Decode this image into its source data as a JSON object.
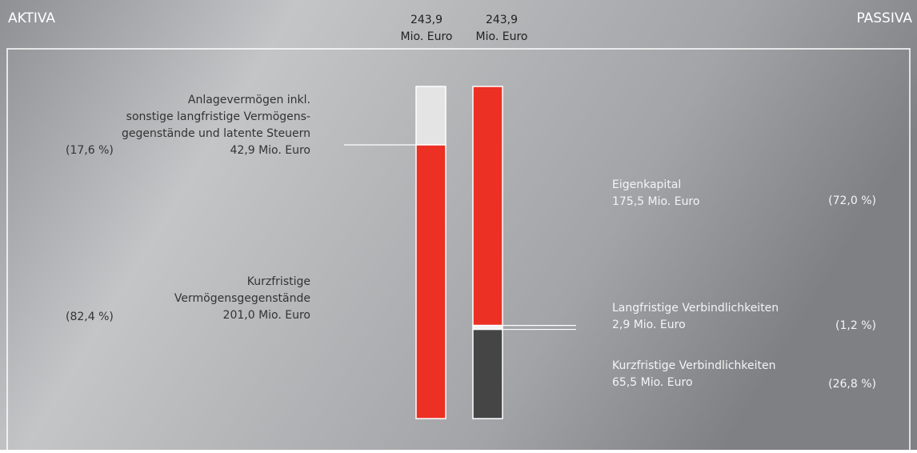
{
  "chart_data": {
    "type": "balance",
    "unit": "Mio. Euro",
    "bars": [
      {
        "name": "AKTIVA",
        "total": 243.9,
        "total_label": "243,9",
        "segments": [
          {
            "name": [
              "Anlagevermögen inkl.",
              "sonstige langfristige Vermögens-",
              "gegenstände und latente Steuern"
            ],
            "value": 42.9,
            "value_label": "42,9 Mio. Euro",
            "share_label": "(17,6 %)",
            "color": "#e4e4e4"
          },
          {
            "name": [
              "Kurzfristige",
              "Vermögensgegenstände"
            ],
            "value": 201.0,
            "value_label": "201,0 Mio. Euro",
            "share_label": "(82,4 %)",
            "color": "#ec3024"
          }
        ]
      },
      {
        "name": "PASSIVA",
        "total": 243.9,
        "total_label": "243,9",
        "segments": [
          {
            "name": [
              "Eigenkapital"
            ],
            "value": 175.5,
            "value_label": "175,5 Mio. Euro",
            "share_label": "(72,0 %)",
            "color": "#ec3024"
          },
          {
            "name": [
              "Langfristige Verbindlichkeiten"
            ],
            "value": 2.9,
            "value_label": "2,9 Mio. Euro",
            "share_label": "(1,2 %)",
            "color": "#f2f2f2"
          },
          {
            "name": [
              "Kurzfristige Verbindlichkeiten"
            ],
            "value": 65.5,
            "value_label": "65,5 Mio. Euro",
            "share_label": "(26,8 %)",
            "color": "#454545"
          }
        ]
      }
    ]
  }
}
